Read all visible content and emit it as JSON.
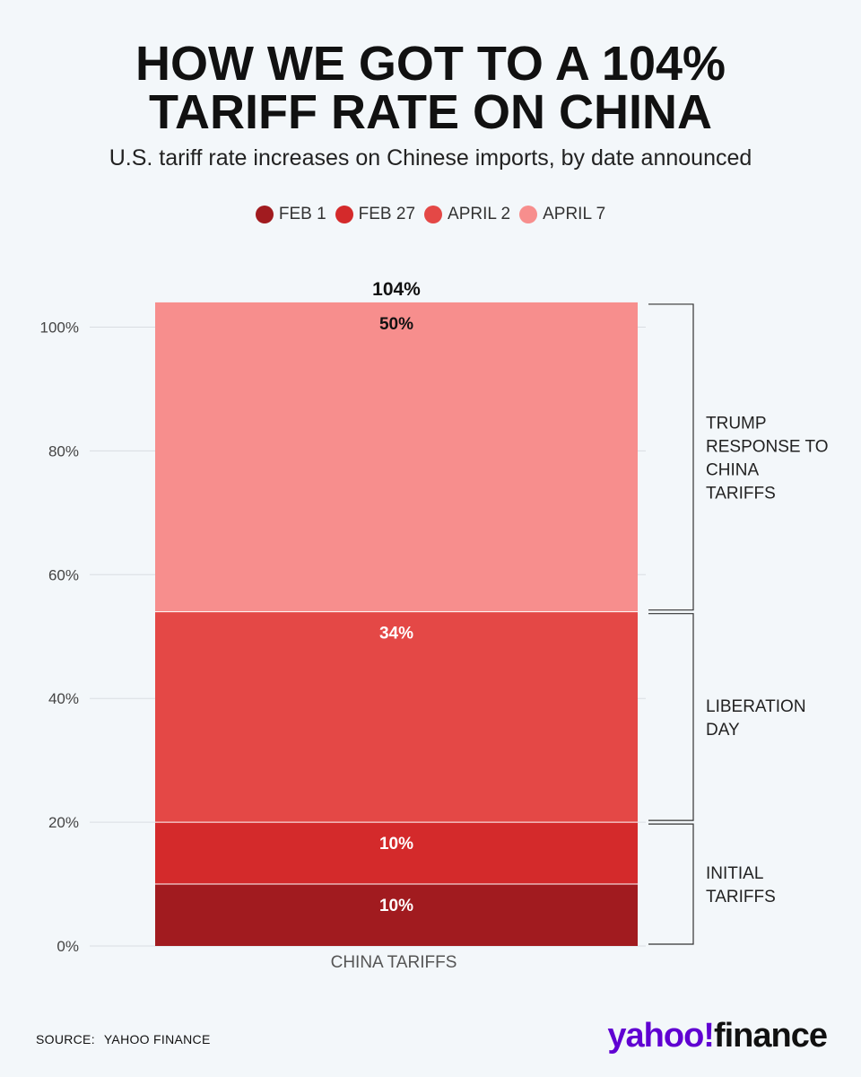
{
  "title_lines": [
    "HOW WE GOT TO A 104%",
    "TARIFF RATE ON CHINA"
  ],
  "subtitle": "U.S. tariff rate increases on Chinese imports, by date announced",
  "legend": [
    {
      "label": "FEB 1",
      "color": "#a11b1f"
    },
    {
      "label": "FEB 27",
      "color": "#d42a2b"
    },
    {
      "label": "APRIL 2",
      "color": "#e44846"
    },
    {
      "label": "APRIL 7",
      "color": "#f78e8d"
    }
  ],
  "chart_data": {
    "type": "bar",
    "stacked": true,
    "categories": [
      "CHINA TARIFFS"
    ],
    "series": [
      {
        "name": "FEB 1",
        "values": [
          10
        ],
        "label": "10%",
        "color": "#a11b1f"
      },
      {
        "name": "FEB 27",
        "values": [
          10
        ],
        "label": "10%",
        "color": "#d42a2b"
      },
      {
        "name": "APRIL 2",
        "values": [
          34
        ],
        "label": "34%",
        "color": "#e44846"
      },
      {
        "name": "APRIL 7",
        "values": [
          50
        ],
        "label": "50%",
        "color": "#f78e8d"
      }
    ],
    "total_label": "104%",
    "y_ticks": [
      "0%",
      "20%",
      "40%",
      "60%",
      "80%",
      "100%"
    ],
    "y_tick_values": [
      0,
      20,
      40,
      60,
      80,
      100
    ],
    "ylim": [
      0,
      104
    ],
    "grid": true,
    "annotations": [
      {
        "label_lines": [
          "INITIAL",
          "TARIFFS"
        ],
        "from": 0,
        "to": 20
      },
      {
        "label_lines": [
          "LIBERATION",
          "DAY"
        ],
        "from": 20,
        "to": 54
      },
      {
        "label_lines": [
          "TRUMP",
          "RESPONSE TO",
          "CHINA",
          "TARIFFS"
        ],
        "from": 54,
        "to": 104
      }
    ]
  },
  "source": {
    "label": "SOURCE:",
    "text": "YAHOO FINANCE"
  },
  "logo": {
    "yahoo": "yahoo!",
    "finance": "finance"
  }
}
